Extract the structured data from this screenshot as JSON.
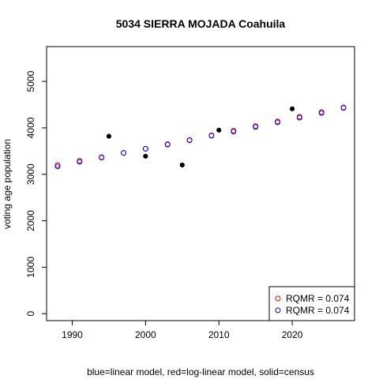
{
  "chart_data": {
    "type": "scatter",
    "title": "5034 SIERRA MOJADA Coahuila",
    "xlabel": "blue=linear model, red=log-linear model, solid=census",
    "ylabel": "voting age population",
    "xlim": [
      1986.5,
      2028.5
    ],
    "ylim": [
      -150,
      5750
    ],
    "x_ticks": [
      1990,
      2000,
      2010,
      2020
    ],
    "y_ticks": [
      0,
      1000,
      2000,
      3000,
      4000,
      5000
    ],
    "grid": false,
    "legend_position": "bottom-right",
    "colors": {
      "linear": "#0000ff",
      "loglinear": "#ff0000",
      "census": "#000000"
    },
    "series": [
      {
        "name": "RQMR = 0.074",
        "model": "log-linear",
        "style": "open-circle",
        "color": "#ff0000",
        "x": [
          1988,
          1991,
          1994,
          1997,
          2000,
          2003,
          2006,
          2009,
          2012,
          2015,
          2018,
          2021,
          2024,
          2027
        ],
        "y": [
          3200,
          3290,
          3370,
          3460,
          3550,
          3650,
          3740,
          3840,
          3940,
          4040,
          4140,
          4240,
          4340,
          4440
        ]
      },
      {
        "name": "RQMR = 0.074",
        "model": "linear",
        "style": "open-circle",
        "color": "#0000ff",
        "x": [
          1988,
          1991,
          1994,
          1997,
          2000,
          2003,
          2006,
          2009,
          2012,
          2015,
          2018,
          2021,
          2024,
          2027
        ],
        "y": [
          3170,
          3270,
          3360,
          3460,
          3550,
          3640,
          3730,
          3830,
          3920,
          4020,
          4120,
          4220,
          4320,
          4430
        ]
      },
      {
        "model": "census",
        "style": "solid",
        "color": "#000000",
        "x": [
          1995,
          2000,
          2005,
          2010,
          2020
        ],
        "y": [
          3820,
          3390,
          3200,
          3950,
          4410
        ]
      }
    ]
  }
}
